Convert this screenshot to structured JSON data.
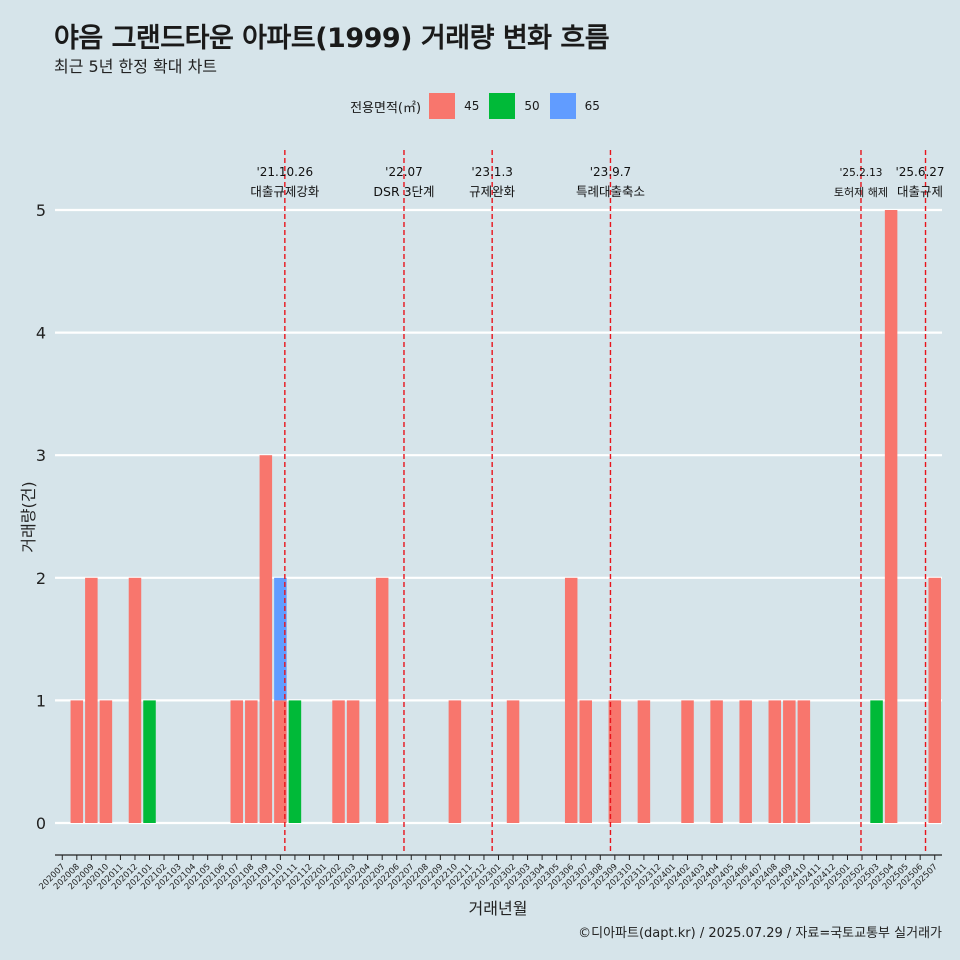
{
  "title": "야음 그랜드타운 아파트(1999) 거래량 변화 흐름",
  "subtitle": "최근 5년 한정 확대 차트",
  "caption": "©디아파트(dapt.kr) / 2025.07.29 / 자료=국토교통부 실거래가",
  "legend": {
    "title": "전용면적(㎡)",
    "items": [
      {
        "label": "45",
        "color": "#f8766d"
      },
      {
        "label": "50",
        "color": "#00ba38"
      },
      {
        "label": "65",
        "color": "#619cff"
      }
    ]
  },
  "colors": {
    "background": "#d6e4ea",
    "grid": "#ffffff",
    "event_line": "#e8141c"
  },
  "chart_data": {
    "type": "bar",
    "xlabel": "거래년월",
    "ylabel": "거래량(건)",
    "ylim": [
      0,
      5
    ],
    "yticks": [
      0,
      1,
      2,
      3,
      4,
      5
    ],
    "categories": [
      "202007",
      "202008",
      "202009",
      "202010",
      "202011",
      "202012",
      "202101",
      "202102",
      "202103",
      "202104",
      "202105",
      "202106",
      "202107",
      "202108",
      "202109",
      "202110",
      "202111",
      "202112",
      "202201",
      "202202",
      "202203",
      "202204",
      "202205",
      "202206",
      "202207",
      "202208",
      "202209",
      "202210",
      "202211",
      "202212",
      "202301",
      "202302",
      "202303",
      "202304",
      "202305",
      "202306",
      "202307",
      "202308",
      "202309",
      "202310",
      "202311",
      "202312",
      "202401",
      "202402",
      "202403",
      "202404",
      "202405",
      "202406",
      "202407",
      "202408",
      "202409",
      "202410",
      "202411",
      "202412",
      "202501",
      "202502",
      "202503",
      "202504",
      "202505",
      "202506",
      "202507"
    ],
    "series": [
      {
        "name": "45",
        "color": "#f8766d",
        "values": [
          0,
          1,
          2,
          1,
          0,
          2,
          0,
          0,
          0,
          0,
          0,
          0,
          1,
          1,
          3,
          1,
          0,
          0,
          0,
          1,
          1,
          0,
          2,
          0,
          0,
          0,
          0,
          1,
          0,
          0,
          0,
          1,
          0,
          0,
          0,
          2,
          1,
          0,
          1,
          0,
          1,
          0,
          0,
          1,
          0,
          1,
          0,
          1,
          0,
          1,
          1,
          1,
          0,
          0,
          0,
          0,
          0,
          5,
          0,
          0,
          2
        ]
      },
      {
        "name": "50",
        "color": "#00ba38",
        "values": [
          0,
          0,
          0,
          0,
          0,
          0,
          1,
          0,
          0,
          0,
          0,
          0,
          0,
          0,
          0,
          0,
          1,
          0,
          0,
          0,
          0,
          0,
          0,
          0,
          0,
          0,
          0,
          0,
          0,
          0,
          0,
          0,
          0,
          0,
          0,
          0,
          0,
          0,
          0,
          0,
          0,
          0,
          0,
          0,
          0,
          0,
          0,
          0,
          0,
          0,
          0,
          0,
          0,
          0,
          0,
          0,
          1,
          0,
          0,
          0,
          0
        ]
      },
      {
        "name": "65",
        "color": "#619cff",
        "values": [
          0,
          0,
          0,
          0,
          0,
          0,
          0,
          0,
          0,
          0,
          0,
          0,
          0,
          0,
          0,
          1,
          0,
          0,
          0,
          0,
          0,
          0,
          0,
          0,
          0,
          0,
          0,
          0,
          0,
          0,
          0,
          0,
          0,
          0,
          0,
          0,
          0,
          0,
          0,
          0,
          0,
          0,
          0,
          0,
          0,
          0,
          0,
          0,
          0,
          0,
          0,
          0,
          0,
          0,
          0,
          0,
          0,
          0,
          0,
          0,
          0
        ]
      }
    ],
    "events": [
      {
        "date": "2021-10-26",
        "label_date": "'21.10.26",
        "label_text": "대출규제강화"
      },
      {
        "date": "2022-07-01",
        "label_date": "'22.07",
        "label_text": "DSR 3단계"
      },
      {
        "date": "2023-01-03",
        "label_date": "'23.1.3",
        "label_text": "규제완화"
      },
      {
        "date": "2023-09-07",
        "label_date": "'23.9.7",
        "label_text": "특례대출축소"
      },
      {
        "date": "2025-02-13",
        "label_date": "'25.2.13",
        "label_text": "토허제 해제"
      },
      {
        "date": "2025-06-27",
        "label_date": "'25.6.27",
        "label_text": "대출규제"
      }
    ]
  }
}
